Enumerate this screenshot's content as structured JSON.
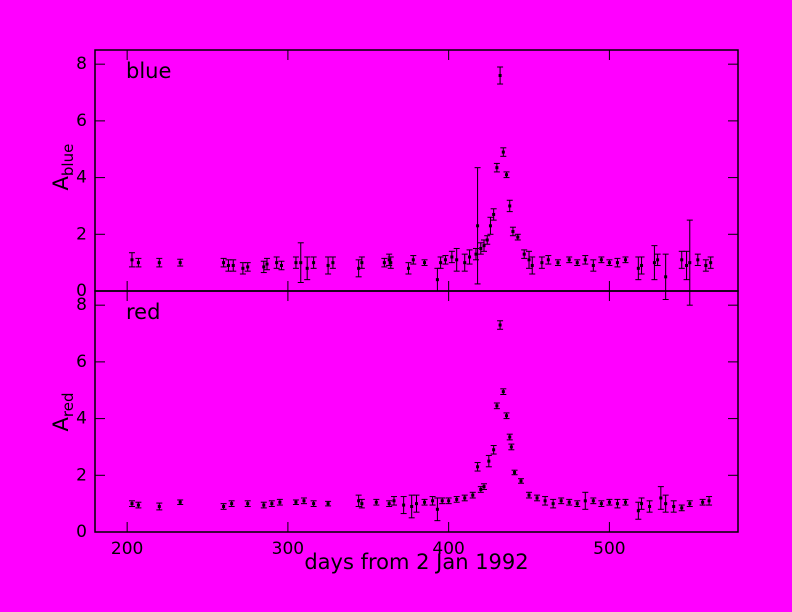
{
  "chart_data": [
    {
      "type": "scatter",
      "panel_label": "blue",
      "y_label": "A",
      "y_label_sub": "blue",
      "color": "#000000",
      "show_xtick_labels": false,
      "xlim": [
        180,
        580
      ],
      "ylim": [
        0,
        8.5
      ],
      "xticks": [
        200,
        300,
        400,
        500
      ],
      "yticks": [
        0,
        2,
        4,
        6,
        8
      ],
      "x": [
        203,
        207,
        220,
        233,
        260,
        263,
        266,
        272,
        275,
        285,
        287,
        293,
        296,
        305,
        308,
        312,
        316,
        325,
        328,
        344,
        346,
        360,
        363,
        364,
        375,
        378,
        385,
        393,
        395,
        398,
        402,
        405,
        410,
        413,
        417,
        418,
        420,
        422,
        424,
        426,
        428,
        430,
        432,
        434,
        436,
        438,
        440,
        443,
        447,
        450,
        452,
        458,
        462,
        468,
        475,
        480,
        485,
        490,
        495,
        500,
        505,
        510,
        518,
        520,
        528,
        530,
        535,
        545,
        548,
        550,
        555,
        560,
        563
      ],
      "values": [
        1.1,
        1.0,
        1.0,
        1.0,
        1.0,
        0.9,
        0.9,
        0.8,
        0.85,
        0.85,
        0.95,
        1.0,
        0.9,
        1.0,
        1.0,
        0.8,
        1.0,
        0.9,
        1.0,
        0.8,
        1.0,
        1.0,
        1.1,
        1.0,
        0.8,
        1.1,
        1.0,
        0.4,
        1.0,
        1.1,
        1.2,
        1.1,
        1.0,
        1.2,
        1.3,
        2.3,
        1.5,
        1.6,
        1.8,
        2.3,
        2.7,
        4.35,
        7.6,
        4.9,
        4.1,
        3.0,
        2.1,
        1.9,
        1.3,
        1.1,
        0.9,
        1.0,
        1.1,
        1.0,
        1.1,
        1.0,
        1.1,
        0.9,
        1.1,
        1.0,
        1.0,
        1.1,
        0.8,
        0.9,
        1.0,
        1.1,
        0.5,
        1.1,
        0.9,
        1.0,
        1.1,
        0.9,
        1.0
      ],
      "errors": [
        0.25,
        0.15,
        0.15,
        0.12,
        0.15,
        0.2,
        0.2,
        0.2,
        0.15,
        0.2,
        0.2,
        0.2,
        0.15,
        0.2,
        0.7,
        0.4,
        0.2,
        0.3,
        0.2,
        0.3,
        0.2,
        0.15,
        0.2,
        0.2,
        0.2,
        0.15,
        0.1,
        0.4,
        0.2,
        0.15,
        0.2,
        0.4,
        0.3,
        0.25,
        0.2,
        2.05,
        0.2,
        0.2,
        0.15,
        0.3,
        0.2,
        0.15,
        0.3,
        0.15,
        0.1,
        0.2,
        0.15,
        0.1,
        0.15,
        0.3,
        0.3,
        0.2,
        0.15,
        0.1,
        0.1,
        0.1,
        0.15,
        0.2,
        0.1,
        0.1,
        0.15,
        0.1,
        0.4,
        0.3,
        0.6,
        0.2,
        0.8,
        0.3,
        0.5,
        1.5,
        0.2,
        0.2,
        0.2
      ]
    },
    {
      "type": "scatter",
      "panel_label": "red",
      "y_label": "A",
      "y_label_sub": "red",
      "color": "#000000",
      "show_xtick_labels": true,
      "x_label": "days from 2 Jan 1992",
      "xlim": [
        180,
        580
      ],
      "ylim": [
        0,
        8.5
      ],
      "xticks": [
        200,
        300,
        400,
        500
      ],
      "yticks": [
        0,
        2,
        4,
        6,
        8
      ],
      "x": [
        203,
        207,
        220,
        233,
        260,
        265,
        275,
        285,
        290,
        295,
        305,
        310,
        316,
        325,
        344,
        346,
        355,
        363,
        366,
        372,
        377,
        380,
        385,
        390,
        393,
        396,
        400,
        405,
        410,
        415,
        418,
        420,
        422,
        425,
        428,
        430,
        432,
        434,
        436,
        438,
        439,
        441,
        445,
        450,
        455,
        460,
        465,
        470,
        475,
        480,
        485,
        490,
        495,
        500,
        505,
        510,
        518,
        520,
        525,
        532,
        535,
        540,
        545,
        550,
        558,
        562
      ],
      "values": [
        1.0,
        0.95,
        0.9,
        1.05,
        0.9,
        1.0,
        1.0,
        0.95,
        1.0,
        1.05,
        1.05,
        1.1,
        1.0,
        1.0,
        1.1,
        1.0,
        1.05,
        1.0,
        1.1,
        0.95,
        0.9,
        1.0,
        1.05,
        1.1,
        0.8,
        1.1,
        1.1,
        1.15,
        1.2,
        1.3,
        2.3,
        1.5,
        1.6,
        2.5,
        2.9,
        4.45,
        7.3,
        4.95,
        4.1,
        3.35,
        3.0,
        2.1,
        1.8,
        1.3,
        1.2,
        1.1,
        1.0,
        1.1,
        1.05,
        1.0,
        1.1,
        1.1,
        1.0,
        1.05,
        1.0,
        1.05,
        0.75,
        1.0,
        0.9,
        1.2,
        1.0,
        0.9,
        0.85,
        1.0,
        1.05,
        1.1
      ],
      "errors": [
        0.1,
        0.1,
        0.12,
        0.08,
        0.1,
        0.1,
        0.1,
        0.1,
        0.1,
        0.1,
        0.08,
        0.1,
        0.1,
        0.08,
        0.2,
        0.15,
        0.1,
        0.1,
        0.15,
        0.3,
        0.4,
        0.3,
        0.1,
        0.15,
        0.4,
        0.1,
        0.1,
        0.1,
        0.1,
        0.1,
        0.15,
        0.1,
        0.1,
        0.2,
        0.15,
        0.1,
        0.15,
        0.1,
        0.1,
        0.1,
        0.1,
        0.08,
        0.08,
        0.1,
        0.1,
        0.15,
        0.15,
        0.1,
        0.1,
        0.1,
        0.3,
        0.1,
        0.1,
        0.1,
        0.15,
        0.1,
        0.3,
        0.2,
        0.2,
        0.4,
        0.3,
        0.2,
        0.1,
        0.1,
        0.1,
        0.15
      ]
    }
  ]
}
